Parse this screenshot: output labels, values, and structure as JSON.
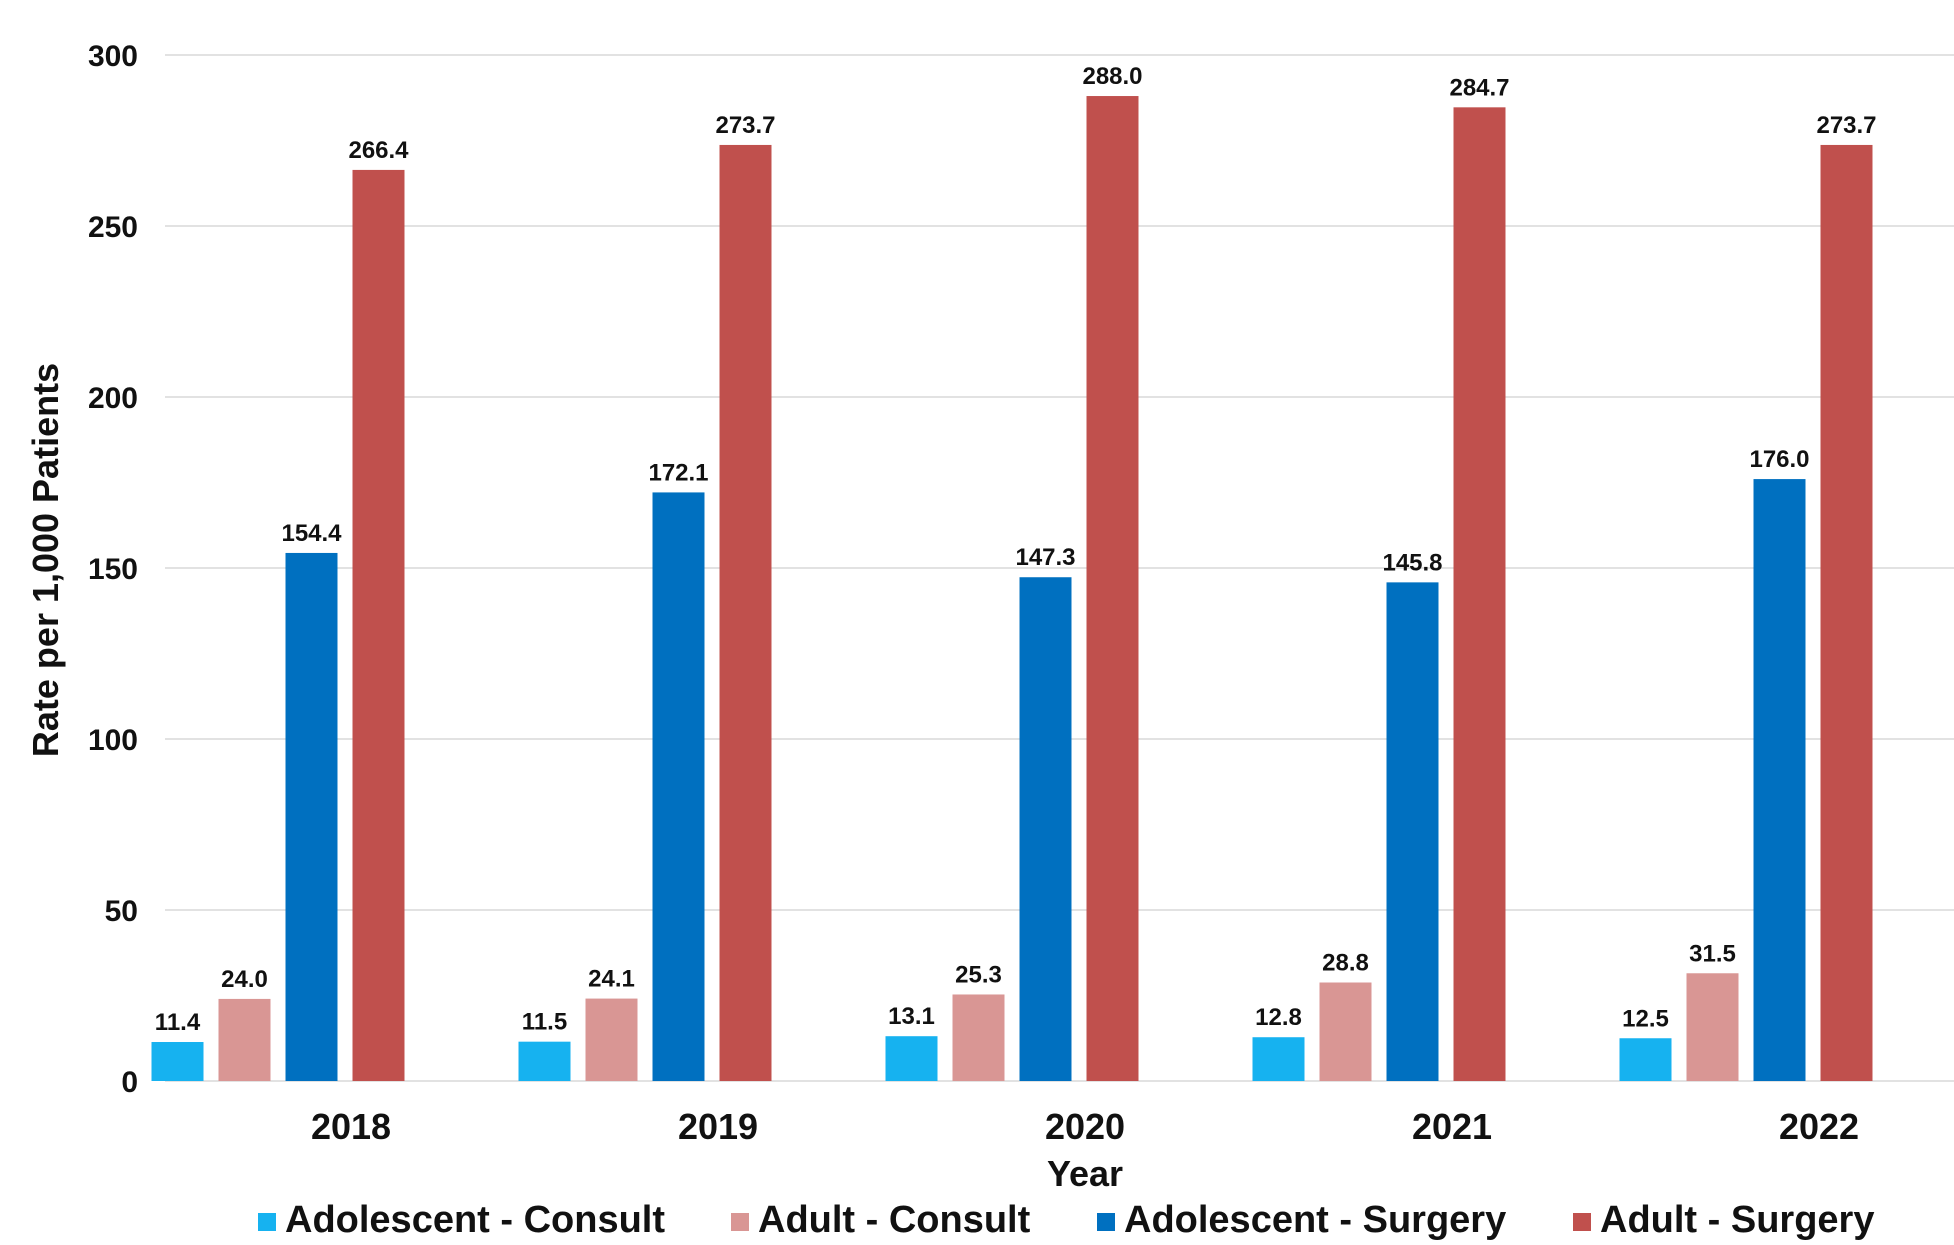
{
  "chart_data": {
    "type": "bar",
    "title": "",
    "xlabel": "Year",
    "ylabel": "Rate per 1,000 Patients",
    "ylim": [
      0,
      300
    ],
    "yticks": [
      0,
      50,
      100,
      150,
      200,
      250,
      300
    ],
    "grid": true,
    "legend_position": "bottom",
    "categories": [
      "2018",
      "2019",
      "2020",
      "2021",
      "2022"
    ],
    "series": [
      {
        "name": "Adolescent - Consult",
        "color": "#16b2f0",
        "values": [
          11.4,
          11.5,
          13.1,
          12.8,
          12.5
        ],
        "labels": [
          "11.4",
          "11.5",
          "13.1",
          "12.8",
          "12.5"
        ]
      },
      {
        "name": "Adult - Consult",
        "color": "#d99694",
        "values": [
          24.0,
          24.1,
          25.3,
          28.8,
          31.5
        ],
        "labels": [
          "24.0",
          "24.1",
          "25.3",
          "28.8",
          "31.5"
        ]
      },
      {
        "name": "Adolescent - Surgery",
        "color": "#0070c0",
        "values": [
          154.4,
          172.1,
          147.3,
          145.8,
          176.0
        ],
        "labels": [
          "154.4",
          "172.1",
          "147.3",
          "145.8",
          "176.0"
        ]
      },
      {
        "name": "Adult - Surgery",
        "color": "#c0504d",
        "values": [
          266.4,
          273.7,
          288.0,
          284.7,
          273.7
        ],
        "labels": [
          "266.4",
          "273.7",
          "288.0",
          "284.7",
          "273.7"
        ]
      }
    ]
  }
}
